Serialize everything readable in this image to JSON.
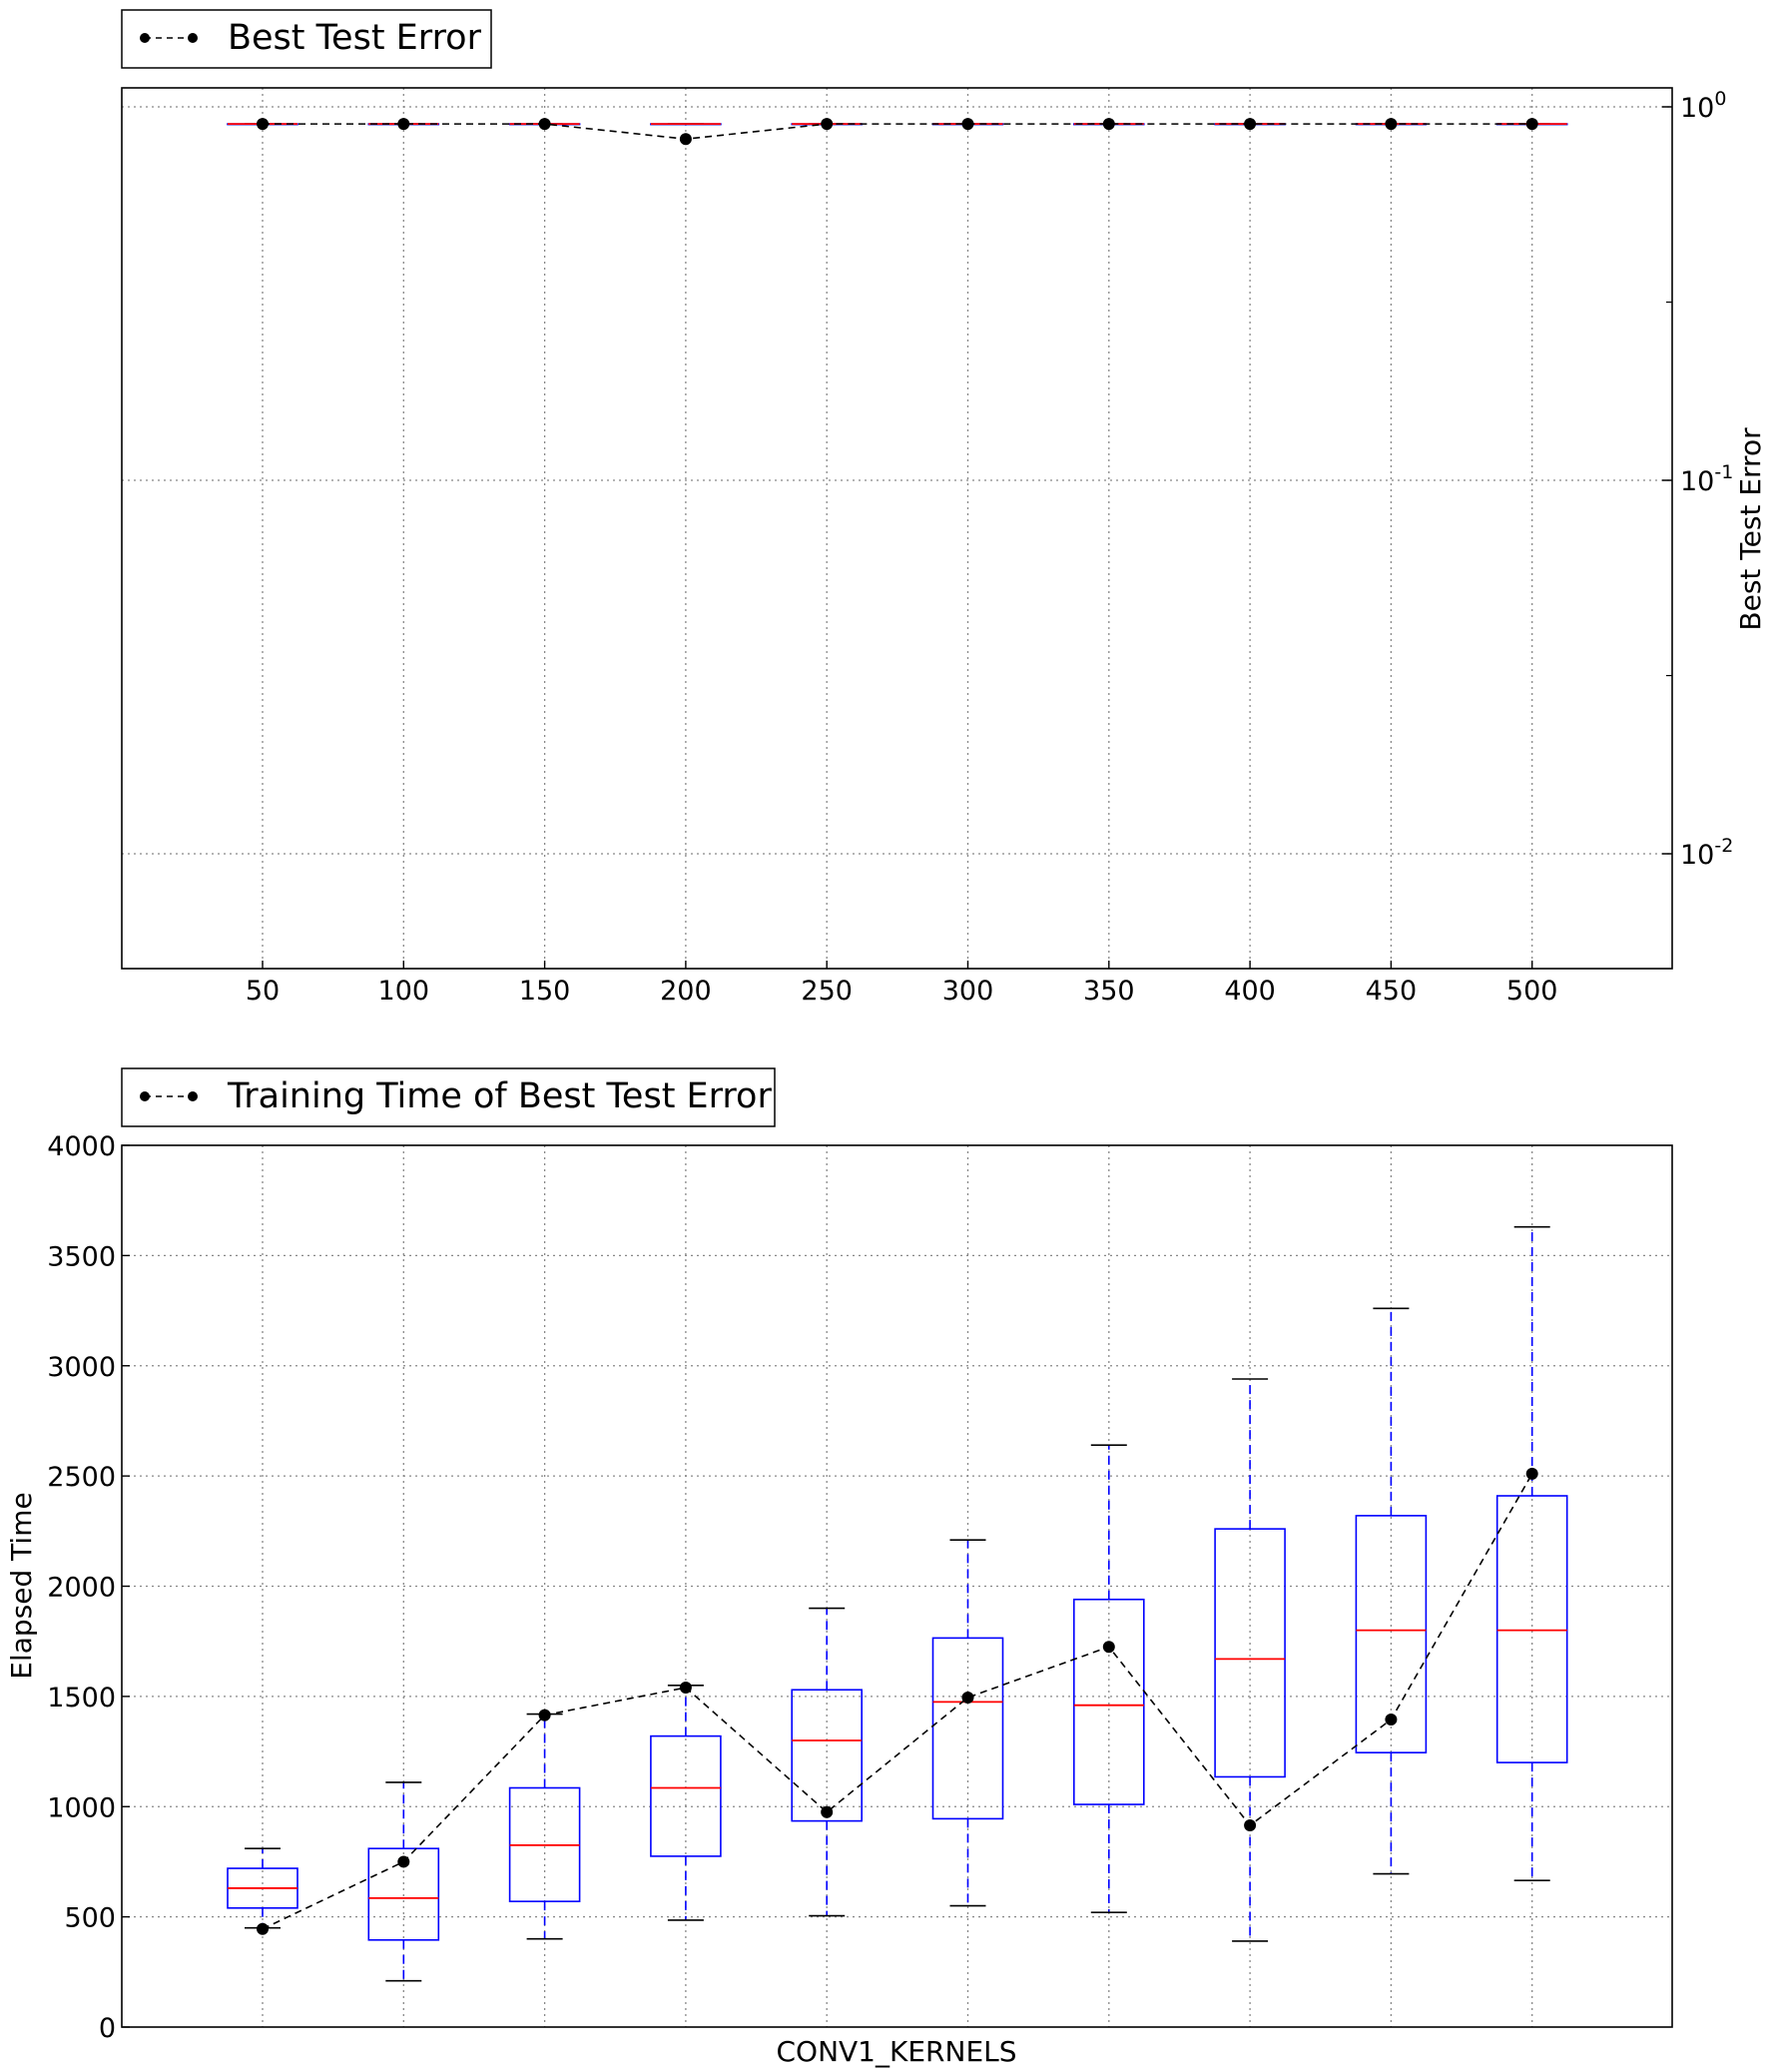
{
  "chart_data": [
    {
      "type": "box",
      "title": "",
      "legend": {
        "label": "Best Test Error",
        "placement": "above-top-left"
      },
      "xlabel": "",
      "ylabel": "Best Test Error",
      "yscale": "log",
      "ylim": [
        0.005,
        1.0
      ],
      "yaxis_side": "right",
      "categories": [
        "50",
        "100",
        "150",
        "200",
        "250",
        "300",
        "350",
        "400",
        "450",
        "500"
      ],
      "xticks": [
        "50",
        "100",
        "150",
        "200",
        "250",
        "300",
        "350",
        "400",
        "450",
        "500"
      ],
      "yticks": [
        {
          "value": 1,
          "base": "10",
          "exp": "0"
        },
        {
          "value": 0.1,
          "base": "10",
          "exp": "-1"
        },
        {
          "value": 0.01,
          "base": "10",
          "exp": "-2"
        }
      ],
      "grid": true,
      "boxes": [
        {
          "min": 0.9,
          "q1": 0.9,
          "median": 0.9,
          "q3": 0.9,
          "max": 0.9
        },
        {
          "min": 0.9,
          "q1": 0.9,
          "median": 0.9,
          "q3": 0.9,
          "max": 0.9
        },
        {
          "min": 0.9,
          "q1": 0.9,
          "median": 0.9,
          "q3": 0.9,
          "max": 0.9
        },
        {
          "min": 0.9,
          "q1": 0.9,
          "median": 0.9,
          "q3": 0.9,
          "max": 0.9
        },
        {
          "min": 0.9,
          "q1": 0.9,
          "median": 0.9,
          "q3": 0.9,
          "max": 0.9
        },
        {
          "min": 0.9,
          "q1": 0.9,
          "median": 0.9,
          "q3": 0.9,
          "max": 0.9
        },
        {
          "min": 0.9,
          "q1": 0.9,
          "median": 0.9,
          "q3": 0.9,
          "max": 0.9
        },
        {
          "min": 0.9,
          "q1": 0.9,
          "median": 0.9,
          "q3": 0.9,
          "max": 0.9
        },
        {
          "min": 0.9,
          "q1": 0.9,
          "median": 0.9,
          "q3": 0.9,
          "max": 0.9
        },
        {
          "min": 0.9,
          "q1": 0.9,
          "median": 0.9,
          "q3": 0.9,
          "max": 0.9
        }
      ],
      "series": [
        {
          "name": "Best Test Error",
          "values": [
            0.9,
            0.9,
            0.9,
            0.82,
            0.9,
            0.9,
            0.9,
            0.9,
            0.9,
            0.9
          ]
        }
      ]
    },
    {
      "type": "box",
      "title": "",
      "legend": {
        "label": "Training Time of Best Test Error",
        "placement": "above-top-left"
      },
      "xlabel": "CONV1_KERNELS",
      "ylabel": "Elapsed Time",
      "ylim": [
        0,
        4000
      ],
      "yticks": [
        "0",
        "500",
        "1000",
        "1500",
        "2000",
        "2500",
        "3000",
        "3500",
        "4000"
      ],
      "grid": true,
      "categories": [
        "50",
        "100",
        "150",
        "200",
        "250",
        "300",
        "350",
        "400",
        "450",
        "500"
      ],
      "boxes": [
        {
          "min": 450,
          "q1": 540,
          "median": 630,
          "q3": 720,
          "max": 810
        },
        {
          "min": 210,
          "q1": 395,
          "median": 585,
          "q3": 810,
          "max": 1110
        },
        {
          "min": 400,
          "q1": 570,
          "median": 825,
          "q3": 1085,
          "max": 1420
        },
        {
          "min": 485,
          "q1": 775,
          "median": 1085,
          "q3": 1320,
          "max": 1550
        },
        {
          "min": 505,
          "q1": 935,
          "median": 1300,
          "q3": 1530,
          "max": 1900
        },
        {
          "min": 550,
          "q1": 945,
          "median": 1475,
          "q3": 1765,
          "max": 2210
        },
        {
          "min": 520,
          "q1": 1010,
          "median": 1460,
          "q3": 1940,
          "max": 2640
        },
        {
          "min": 390,
          "q1": 1135,
          "median": 1670,
          "q3": 2260,
          "max": 2940
        },
        {
          "min": 695,
          "q1": 1245,
          "median": 1800,
          "q3": 2320,
          "max": 3260
        },
        {
          "min": 665,
          "q1": 1200,
          "median": 1800,
          "q3": 2410,
          "max": 3630
        }
      ],
      "series": [
        {
          "name": "Training Time of Best Test Error",
          "values": [
            445,
            750,
            1415,
            1540,
            975,
            1495,
            1725,
            915,
            1395,
            2510
          ]
        }
      ]
    }
  ],
  "colors": {
    "box": "#0000ff",
    "median": "#ff0000",
    "whisker_cap": "#000000",
    "line": "#000000",
    "grid": "#888888"
  }
}
